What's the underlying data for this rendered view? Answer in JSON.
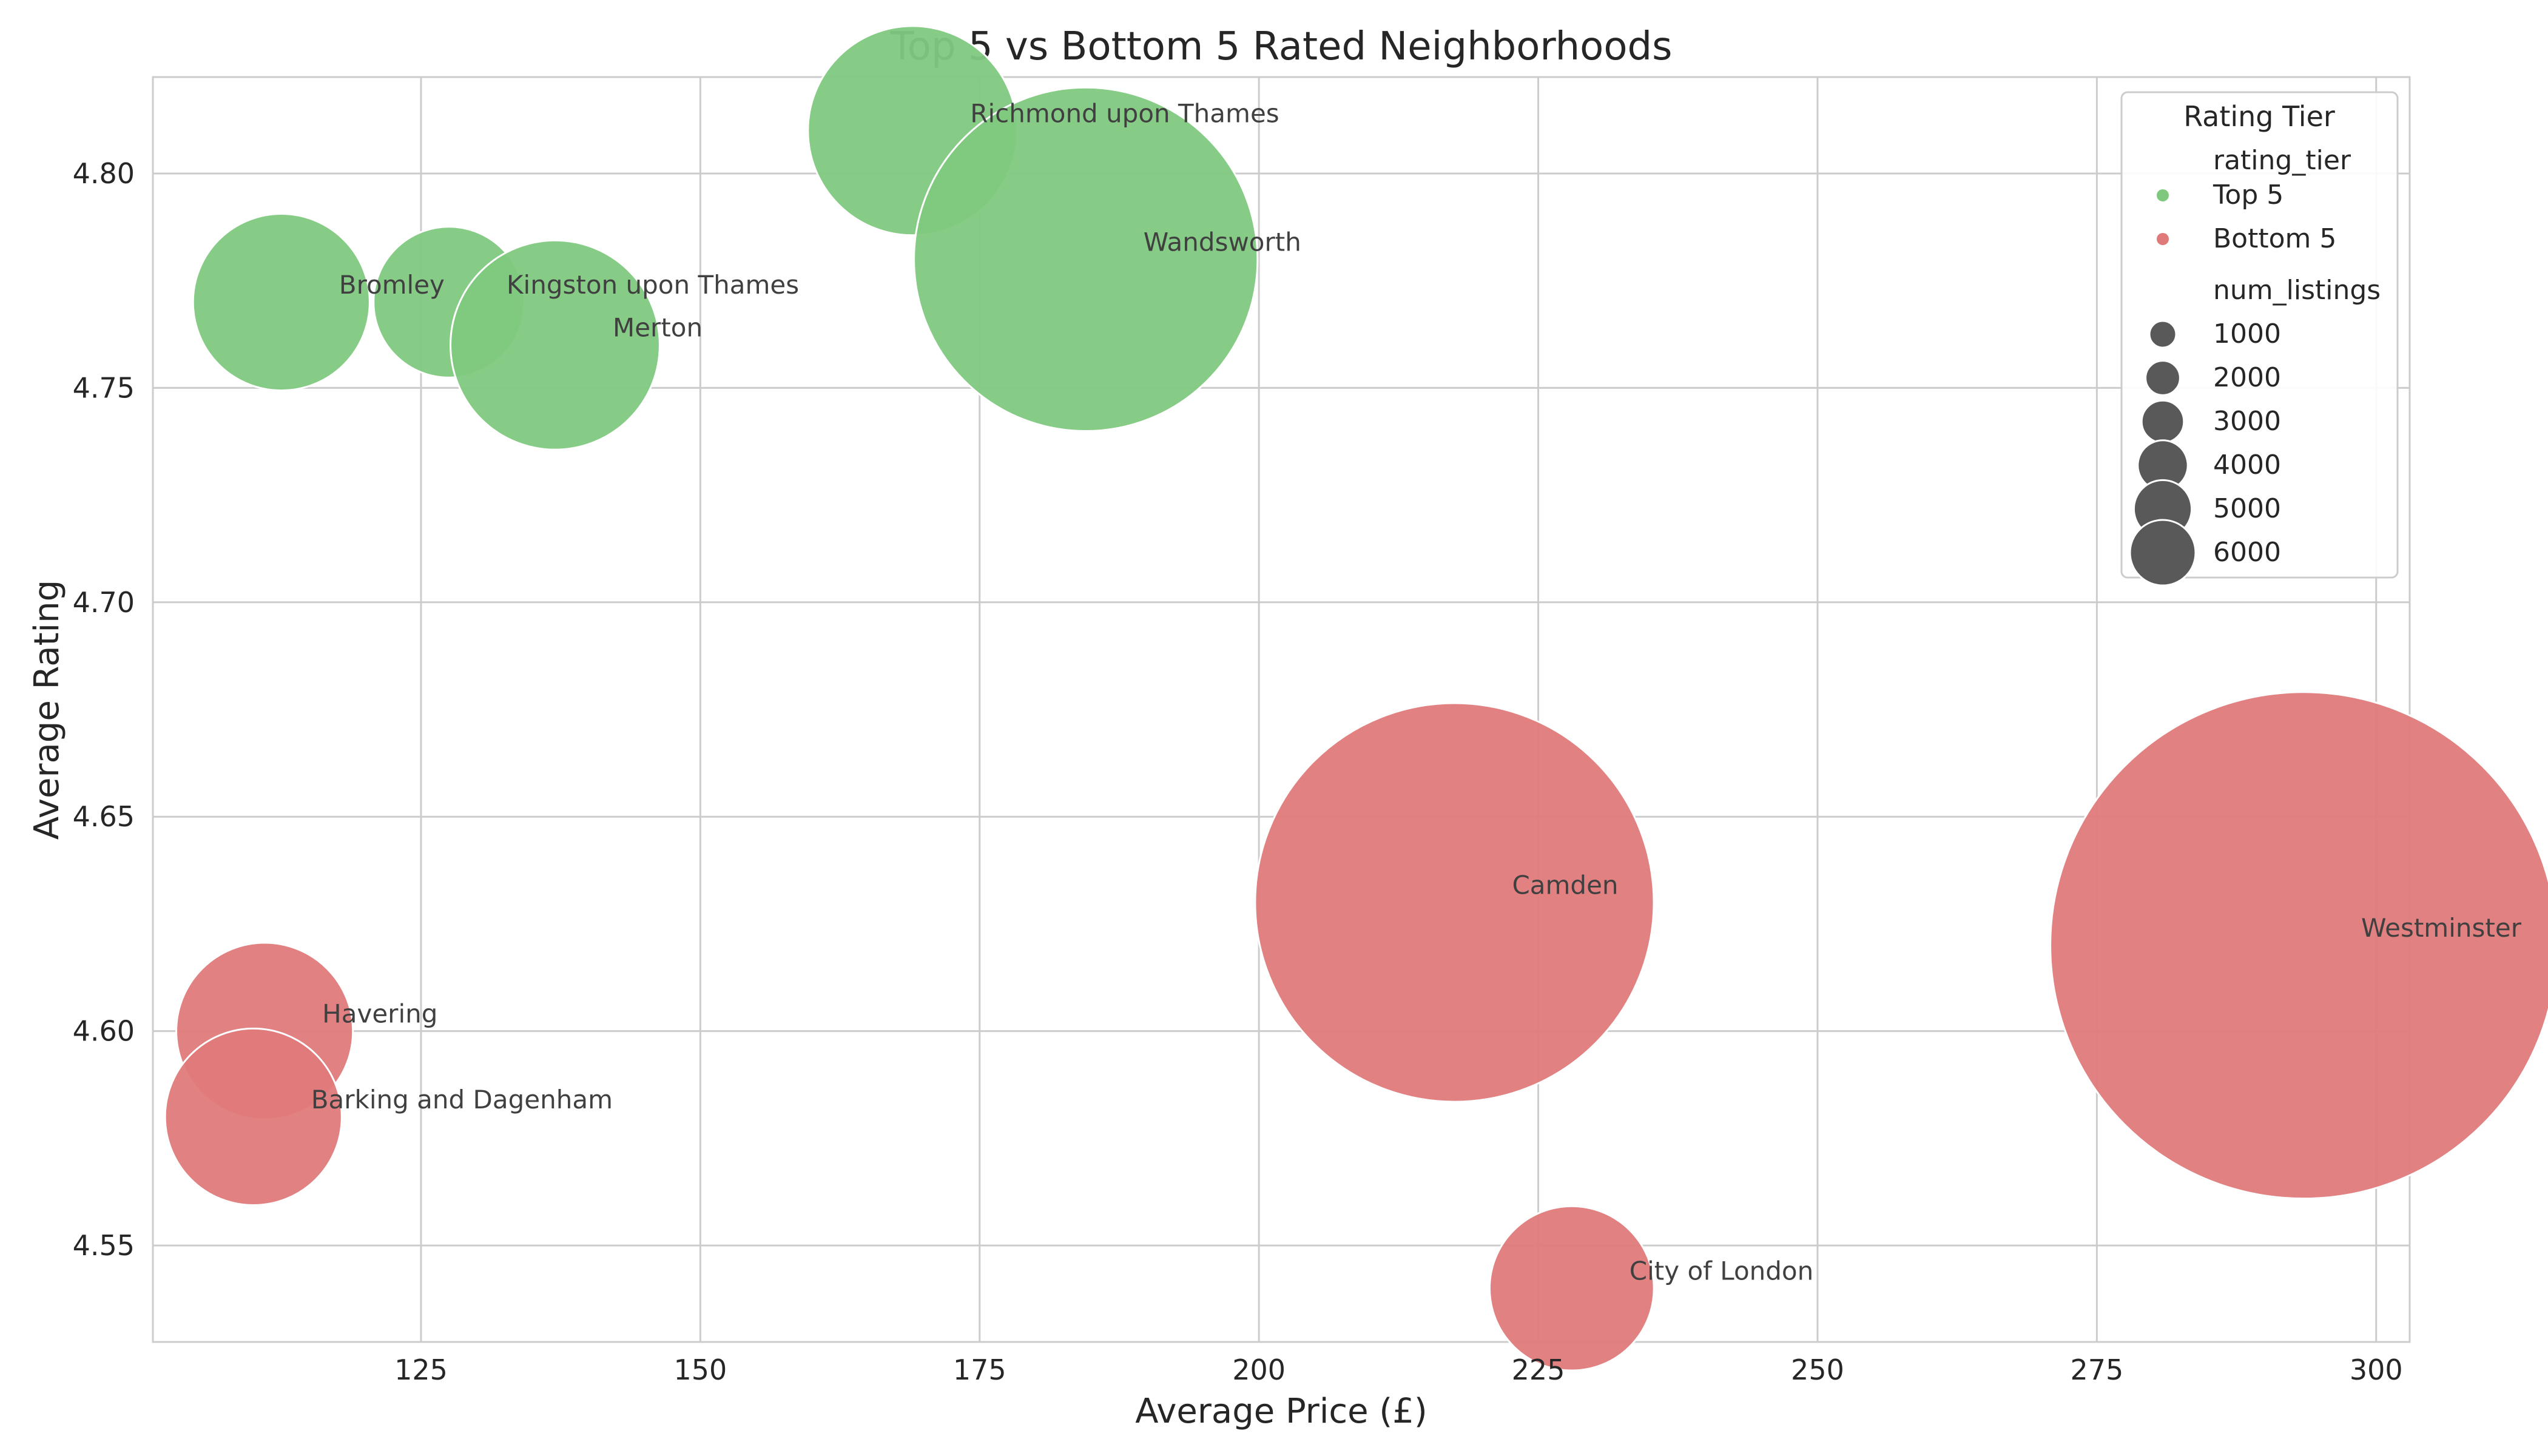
{
  "chart_data": {
    "type": "scatter",
    "title": "Top 5 vs Bottom 5 Rated Neighborhoods",
    "xlabel": "Average Price (£)",
    "ylabel": "Average Rating",
    "xlim": [
      101,
      303
    ],
    "ylim": [
      4.5275,
      4.8225
    ],
    "x_ticks": [
      125,
      150,
      175,
      200,
      225,
      250,
      275,
      300
    ],
    "x_tick_labels": [
      "125",
      "150",
      "175",
      "200",
      "225",
      "250",
      "275",
      "300"
    ],
    "y_ticks": [
      4.55,
      4.6,
      4.65,
      4.7,
      4.75,
      4.8
    ],
    "y_tick_labels": [
      "4.55",
      "4.60",
      "4.65",
      "4.70",
      "4.75",
      "4.80"
    ],
    "grid": true,
    "legend_position": "top-right",
    "colors": {
      "Top 5": "#7fc97f",
      "Bottom 5": "#e07a7a"
    },
    "series": [
      {
        "name": "Top 5",
        "points": [
          {
            "label": "Richmond upon Thames",
            "x": 169,
            "y": 4.81,
            "size": 1000
          },
          {
            "label": "Wandsworth",
            "x": 184.5,
            "y": 4.78,
            "size": 2800
          },
          {
            "label": "Bromley",
            "x": 112.5,
            "y": 4.77,
            "size": 700
          },
          {
            "label": "Kingston upon Thames",
            "x": 127.5,
            "y": 4.77,
            "size": 500
          },
          {
            "label": "Merton",
            "x": 137,
            "y": 4.76,
            "size": 1000
          }
        ]
      },
      {
        "name": "Bottom 5",
        "points": [
          {
            "label": "Camden",
            "x": 217.5,
            "y": 4.63,
            "size": 3800
          },
          {
            "label": "Westminster",
            "x": 293.5,
            "y": 4.62,
            "size": 6200
          },
          {
            "label": "Havering",
            "x": 111,
            "y": 4.6,
            "size": 700
          },
          {
            "label": "Barking and Dagenham",
            "x": 110,
            "y": 4.58,
            "size": 700
          },
          {
            "label": "City of London",
            "x": 228,
            "y": 4.54,
            "size": 600
          }
        ]
      }
    ],
    "legend": {
      "title": "Rating Tier",
      "hue_header": "rating_tier",
      "hue_entries": [
        "Top 5",
        "Bottom 5"
      ],
      "size_header": "num_listings",
      "size_entries": [
        1000,
        2000,
        3000,
        4000,
        5000,
        6000
      ],
      "size_entry_labels": [
        "1000",
        "2000",
        "3000",
        "4000",
        "5000",
        "6000"
      ],
      "size_marker_color": "#595959"
    }
  }
}
